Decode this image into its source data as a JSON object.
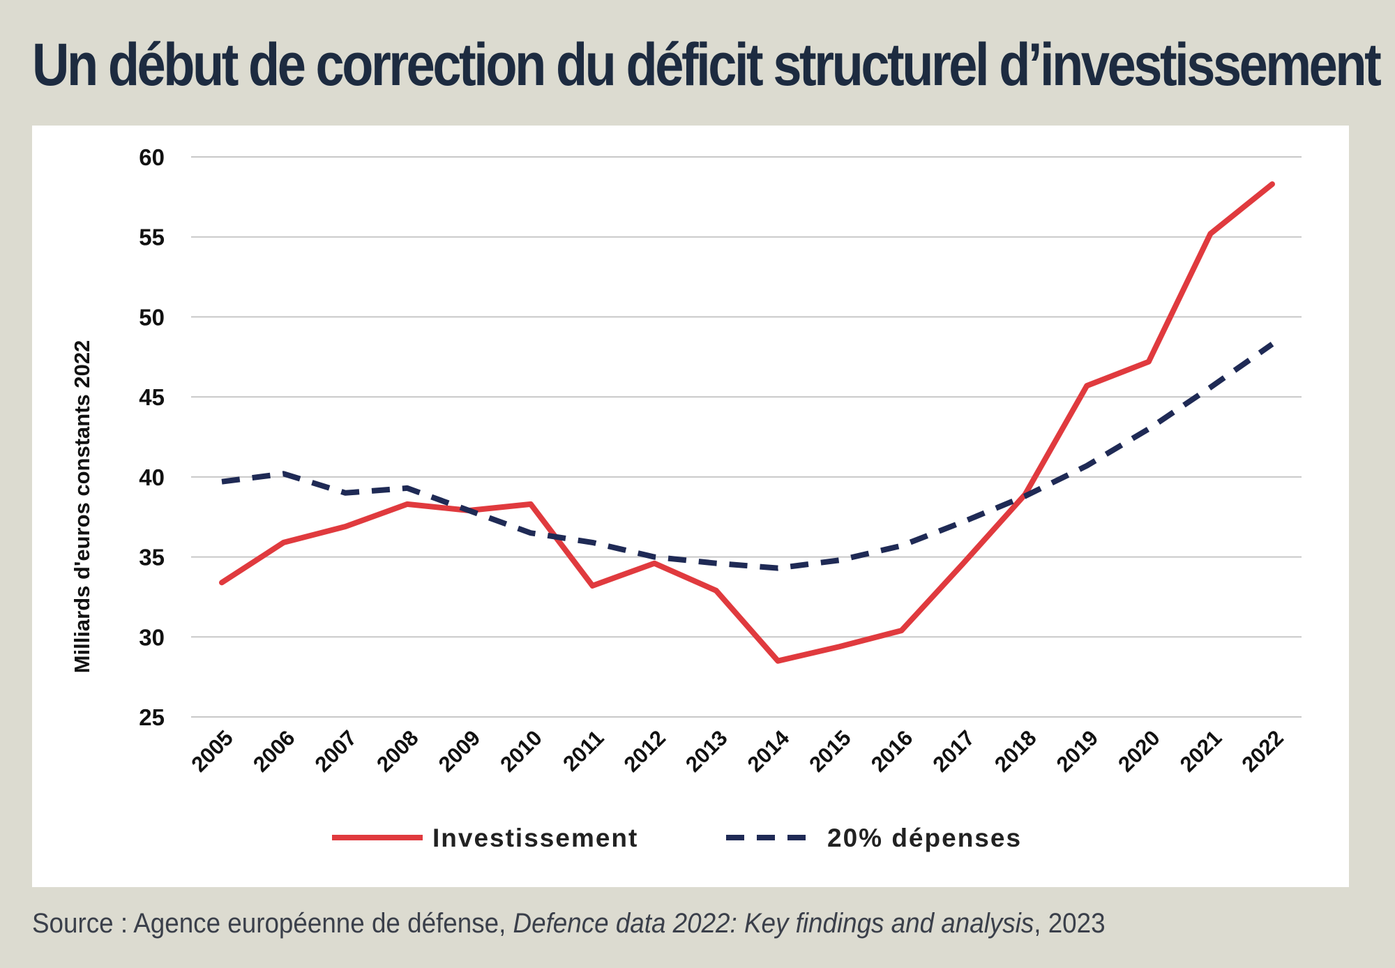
{
  "title": "Un début de correction du déficit structurel d’investissement",
  "source": {
    "prefix": "Source : Agence européenne de défense, ",
    "italic": "Defence data 2022: Key findings and analysis",
    "suffix": ", 2023"
  },
  "chart_data": {
    "type": "line",
    "title": "Un début de correction du déficit structurel d’investissement",
    "xlabel": "",
    "ylabel": "Milliards d'euros constants 2022",
    "categories": [
      "2005",
      "2006",
      "2007",
      "2008",
      "2009",
      "2010",
      "2011",
      "2012",
      "2013",
      "2014",
      "2015",
      "2016",
      "2017",
      "2018",
      "2019",
      "2020",
      "2021",
      "2022"
    ],
    "ylim": [
      25,
      60
    ],
    "yticks": [
      25,
      30,
      35,
      40,
      45,
      50,
      55,
      60
    ],
    "grid": "horizontal",
    "legend_position": "bottom",
    "series": [
      {
        "name": "Investissement",
        "color": "#e03a3e",
        "style": "solid",
        "values": [
          33.4,
          35.9,
          36.9,
          38.3,
          37.9,
          38.3,
          33.2,
          34.6,
          32.9,
          28.5,
          29.4,
          30.4,
          34.6,
          38.9,
          45.7,
          47.2,
          55.2,
          58.3
        ]
      },
      {
        "name": "20% dépenses",
        "color": "#1f2a55",
        "style": "dashed",
        "values": [
          39.7,
          40.2,
          39.0,
          39.3,
          37.9,
          36.5,
          35.9,
          35.0,
          34.6,
          34.3,
          34.8,
          35.7,
          37.2,
          38.8,
          40.7,
          43.0,
          45.6,
          48.3
        ]
      }
    ]
  }
}
